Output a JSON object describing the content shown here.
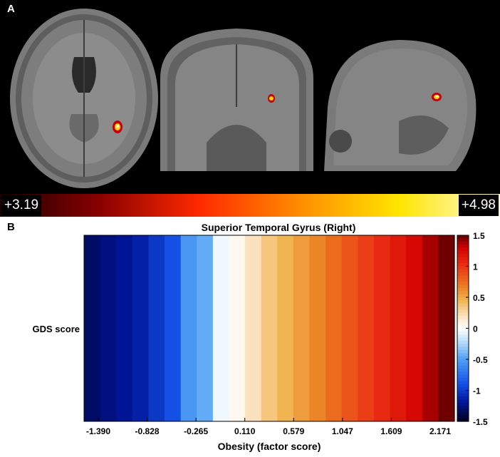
{
  "panel_a": {
    "letter": "A",
    "colorbar": {
      "min_label": "+3.19",
      "max_label": "+4.98",
      "colors": [
        "#1a0000",
        "#8a0000",
        "#ff2a00",
        "#ff8c00",
        "#ffe600",
        "#fffbe0"
      ]
    }
  },
  "panel_b": {
    "letter": "B"
  },
  "chart_data": {
    "type": "heatmap",
    "title": "Superior Temporal Gyrus (Right)",
    "xlabel": "Obesity (factor score)",
    "ylabel": "",
    "row_labels": [
      "GDS score"
    ],
    "x_tick_labels": [
      "-1.390",
      "-0.828",
      "-0.265",
      "0.110",
      "0.579",
      "1.047",
      "1.609",
      "2.171"
    ],
    "xlim": [
      -1.577,
      2.452
    ],
    "values": [
      -1.32,
      -1.26,
      -1.2,
      -1.14,
      -1.02,
      -0.9,
      -0.55,
      -0.45,
      -0.05,
      0.05,
      0.2,
      0.35,
      0.45,
      0.55,
      0.65,
      0.75,
      0.85,
      0.95,
      1.05,
      1.15,
      1.25,
      1.38,
      1.48
    ],
    "colorbar": {
      "ticks": [
        "1.5",
        "1",
        "0.5",
        "0",
        "-0.5",
        "-1",
        "-1.5"
      ],
      "range": [
        -1.5,
        1.5
      ]
    },
    "grid": false
  }
}
